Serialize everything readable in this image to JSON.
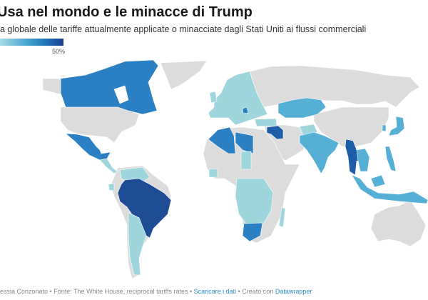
{
  "header": {
    "title": "Usa nel mondo e le minacce di Trump",
    "subtitle": "a globale delle tariffe attualmente applicate o minacciate dagli Stati Uniti ai flussi commerciali"
  },
  "legend": {
    "max_label": "50%",
    "colors": [
      "#a6dbe4",
      "#4aa8d3",
      "#1f6eb5",
      "#1c3f8a"
    ]
  },
  "map": {
    "no_data_color": "#dcdcdc",
    "levels": {
      "light": "#9fd6de",
      "mid": "#56b0d5",
      "blue": "#2a80c2",
      "dark": "#1e4d96"
    }
  },
  "footer": {
    "credit": "essia Conzonato",
    "source": "Fonte: The White House, reciprocal tariffs rates",
    "download_link": "Scaricare i dati",
    "created_with": "Creato con",
    "datawrapper_link": "Datawrapper",
    "separator": " • "
  }
}
